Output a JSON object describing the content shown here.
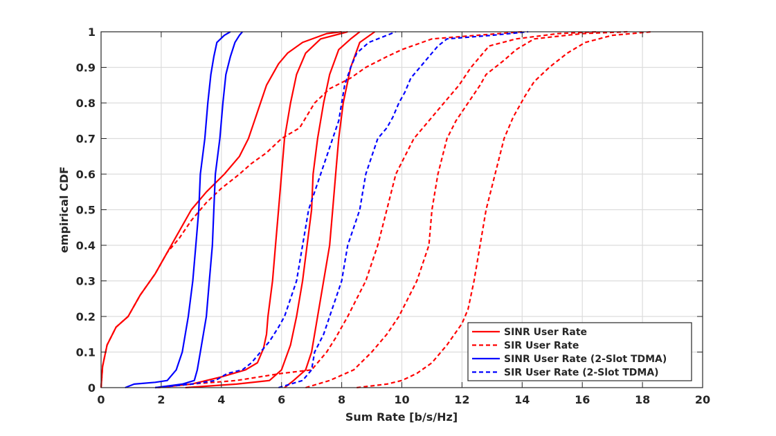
{
  "chart_data": {
    "type": "line",
    "title": "",
    "xlabel": "Sum Rate [b/s/Hz]",
    "ylabel": "empirical CDF",
    "xlim": [
      0,
      20
    ],
    "ylim": [
      0,
      1
    ],
    "x_ticks": [
      "0",
      "2",
      "4",
      "6",
      "8",
      "10",
      "12",
      "14",
      "16",
      "18",
      "20"
    ],
    "y_ticks": [
      "0",
      "0.1",
      "0.2",
      "0.3",
      "0.4",
      "0.5",
      "0.6",
      "0.7",
      "0.8",
      "0.9",
      "1"
    ],
    "grid": true,
    "legend_position": "bottom-right",
    "legend": [
      {
        "label": "SINR User Rate",
        "color": "#ff0000",
        "style": "solid"
      },
      {
        "label": "SIR User Rate",
        "color": "#ff0000",
        "style": "dashed"
      },
      {
        "label": "SINR User Rate (2-Slot TDMA)",
        "color": "#0000ff",
        "style": "solid"
      },
      {
        "label": "SIR User Rate (2-Slot TDMA)",
        "color": "#0000ff",
        "style": "dashed"
      }
    ],
    "series": [
      {
        "legend": 0,
        "points": [
          [
            0,
            0
          ],
          [
            0.05,
            0.06
          ],
          [
            0.2,
            0.12
          ],
          [
            0.5,
            0.17
          ],
          [
            0.9,
            0.2
          ],
          [
            1.3,
            0.26
          ],
          [
            1.8,
            0.32
          ],
          [
            2.2,
            0.38
          ],
          [
            2.6,
            0.44
          ],
          [
            3.0,
            0.5
          ],
          [
            3.5,
            0.55
          ],
          [
            4.1,
            0.6
          ],
          [
            4.6,
            0.65
          ],
          [
            4.9,
            0.7
          ],
          [
            5.1,
            0.75
          ],
          [
            5.3,
            0.8
          ],
          [
            5.5,
            0.85
          ],
          [
            5.7,
            0.88
          ],
          [
            5.9,
            0.91
          ],
          [
            6.2,
            0.94
          ],
          [
            6.7,
            0.97
          ],
          [
            7.5,
            0.995
          ],
          [
            8.0,
            1
          ]
        ]
      },
      {
        "legend": 0,
        "points": [
          [
            1.9,
            0
          ],
          [
            3.0,
            0.01
          ],
          [
            4.0,
            0.03
          ],
          [
            4.8,
            0.05
          ],
          [
            5.2,
            0.07
          ],
          [
            5.4,
            0.11
          ],
          [
            5.5,
            0.15
          ],
          [
            5.55,
            0.2
          ],
          [
            5.7,
            0.3
          ],
          [
            5.8,
            0.4
          ],
          [
            5.9,
            0.5
          ],
          [
            6.0,
            0.6
          ],
          [
            6.1,
            0.7
          ],
          [
            6.3,
            0.8
          ],
          [
            6.5,
            0.88
          ],
          [
            6.8,
            0.94
          ],
          [
            7.3,
            0.98
          ],
          [
            8.2,
            1
          ]
        ]
      },
      {
        "legend": 0,
        "points": [
          [
            2.8,
            0
          ],
          [
            4.5,
            0.01
          ],
          [
            5.6,
            0.02
          ],
          [
            6.0,
            0.05
          ],
          [
            6.3,
            0.12
          ],
          [
            6.5,
            0.2
          ],
          [
            6.7,
            0.3
          ],
          [
            6.85,
            0.4
          ],
          [
            7.0,
            0.5
          ],
          [
            7.05,
            0.6
          ],
          [
            7.2,
            0.7
          ],
          [
            7.4,
            0.8
          ],
          [
            7.6,
            0.88
          ],
          [
            7.9,
            0.95
          ],
          [
            8.3,
            0.98
          ],
          [
            8.6,
            1
          ]
        ]
      },
      {
        "legend": 0,
        "points": [
          [
            6.1,
            0
          ],
          [
            6.4,
            0.02
          ],
          [
            6.8,
            0.05
          ],
          [
            7.0,
            0.1
          ],
          [
            7.2,
            0.2
          ],
          [
            7.4,
            0.3
          ],
          [
            7.6,
            0.4
          ],
          [
            7.7,
            0.5
          ],
          [
            7.8,
            0.6
          ],
          [
            7.9,
            0.7
          ],
          [
            8.05,
            0.8
          ],
          [
            8.3,
            0.9
          ],
          [
            8.6,
            0.97
          ],
          [
            9.1,
            1
          ]
        ]
      },
      {
        "legend": 1,
        "points": [
          [
            0,
            0
          ],
          [
            0.05,
            0.06
          ],
          [
            0.2,
            0.12
          ],
          [
            0.5,
            0.17
          ],
          [
            0.9,
            0.2
          ],
          [
            1.3,
            0.26
          ],
          [
            1.8,
            0.32
          ],
          [
            2.2,
            0.38
          ],
          [
            2.6,
            0.42
          ],
          [
            3.0,
            0.47
          ],
          [
            3.5,
            0.52
          ],
          [
            4.0,
            0.56
          ],
          [
            4.6,
            0.6
          ],
          [
            5.0,
            0.63
          ],
          [
            5.5,
            0.66
          ],
          [
            6.0,
            0.7
          ],
          [
            6.6,
            0.73
          ],
          [
            7.1,
            0.8
          ],
          [
            7.6,
            0.84
          ],
          [
            8.3,
            0.87
          ],
          [
            8.8,
            0.9
          ],
          [
            9.5,
            0.93
          ],
          [
            10.0,
            0.95
          ],
          [
            11.0,
            0.98
          ],
          [
            12.5,
            0.99
          ],
          [
            14.0,
            1
          ]
        ]
      },
      {
        "legend": 1,
        "points": [
          [
            1.8,
            0
          ],
          [
            3.0,
            0.01
          ],
          [
            4.5,
            0.02
          ],
          [
            6.0,
            0.04
          ],
          [
            7.0,
            0.05
          ],
          [
            7.5,
            0.1
          ],
          [
            7.8,
            0.14
          ],
          [
            8.2,
            0.2
          ],
          [
            8.5,
            0.25
          ],
          [
            8.8,
            0.3
          ],
          [
            9.2,
            0.4
          ],
          [
            9.5,
            0.5
          ],
          [
            9.8,
            0.6
          ],
          [
            10.1,
            0.65
          ],
          [
            10.4,
            0.7
          ],
          [
            10.9,
            0.75
          ],
          [
            11.4,
            0.8
          ],
          [
            11.9,
            0.85
          ],
          [
            12.3,
            0.9
          ],
          [
            12.6,
            0.93
          ],
          [
            12.9,
            0.96
          ],
          [
            13.8,
            0.98
          ],
          [
            15.2,
            0.995
          ],
          [
            16.5,
            1
          ]
        ]
      },
      {
        "legend": 1,
        "points": [
          [
            6.8,
            0
          ],
          [
            7.6,
            0.02
          ],
          [
            8.4,
            0.05
          ],
          [
            9.0,
            0.1
          ],
          [
            9.5,
            0.15
          ],
          [
            9.9,
            0.2
          ],
          [
            10.2,
            0.25
          ],
          [
            10.5,
            0.3
          ],
          [
            10.7,
            0.35
          ],
          [
            10.9,
            0.4
          ],
          [
            11.0,
            0.5
          ],
          [
            11.2,
            0.6
          ],
          [
            11.5,
            0.7
          ],
          [
            11.8,
            0.75
          ],
          [
            12.2,
            0.8
          ],
          [
            12.6,
            0.85
          ],
          [
            12.8,
            0.88
          ],
          [
            13.4,
            0.92
          ],
          [
            13.8,
            0.95
          ],
          [
            14.4,
            0.98
          ],
          [
            16.0,
            0.995
          ],
          [
            17.5,
            1
          ]
        ]
      },
      {
        "legend": 1,
        "points": [
          [
            8.5,
            0
          ],
          [
            9.5,
            0.01
          ],
          [
            10.0,
            0.02
          ],
          [
            10.5,
            0.04
          ],
          [
            11.0,
            0.07
          ],
          [
            11.5,
            0.12
          ],
          [
            12.0,
            0.18
          ],
          [
            12.2,
            0.22
          ],
          [
            12.4,
            0.3
          ],
          [
            12.6,
            0.4
          ],
          [
            12.8,
            0.5
          ],
          [
            13.1,
            0.6
          ],
          [
            13.4,
            0.7
          ],
          [
            13.7,
            0.76
          ],
          [
            14.1,
            0.82
          ],
          [
            14.4,
            0.86
          ],
          [
            14.9,
            0.9
          ],
          [
            15.5,
            0.94
          ],
          [
            16.1,
            0.97
          ],
          [
            17.0,
            0.99
          ],
          [
            18.3,
            1
          ]
        ]
      },
      {
        "legend": 2,
        "points": [
          [
            0.8,
            0
          ],
          [
            1.1,
            0.01
          ],
          [
            1.8,
            0.015
          ],
          [
            2.2,
            0.02
          ],
          [
            2.5,
            0.05
          ],
          [
            2.7,
            0.1
          ],
          [
            2.9,
            0.2
          ],
          [
            3.05,
            0.3
          ],
          [
            3.15,
            0.4
          ],
          [
            3.25,
            0.5
          ],
          [
            3.3,
            0.6
          ],
          [
            3.45,
            0.7
          ],
          [
            3.55,
            0.8
          ],
          [
            3.65,
            0.88
          ],
          [
            3.75,
            0.93
          ],
          [
            3.85,
            0.97
          ],
          [
            4.1,
            0.99
          ],
          [
            4.3,
            1
          ]
        ]
      },
      {
        "legend": 2,
        "points": [
          [
            1.8,
            0
          ],
          [
            2.7,
            0.01
          ],
          [
            3.1,
            0.02
          ],
          [
            3.2,
            0.05
          ],
          [
            3.3,
            0.1
          ],
          [
            3.5,
            0.2
          ],
          [
            3.6,
            0.3
          ],
          [
            3.7,
            0.4
          ],
          [
            3.75,
            0.5
          ],
          [
            3.8,
            0.6
          ],
          [
            3.95,
            0.7
          ],
          [
            4.05,
            0.8
          ],
          [
            4.15,
            0.88
          ],
          [
            4.3,
            0.93
          ],
          [
            4.45,
            0.97
          ],
          [
            4.6,
            0.99
          ],
          [
            4.7,
            1
          ]
        ]
      },
      {
        "legend": 3,
        "points": [
          [
            1.8,
            0
          ],
          [
            3.0,
            0.01
          ],
          [
            3.8,
            0.02
          ],
          [
            4.2,
            0.04
          ],
          [
            4.7,
            0.05
          ],
          [
            5.0,
            0.07
          ],
          [
            5.3,
            0.1
          ],
          [
            5.6,
            0.13
          ],
          [
            5.9,
            0.17
          ],
          [
            6.1,
            0.2
          ],
          [
            6.3,
            0.25
          ],
          [
            6.5,
            0.3
          ],
          [
            6.7,
            0.4
          ],
          [
            6.8,
            0.45
          ],
          [
            6.9,
            0.5
          ],
          [
            7.1,
            0.55
          ],
          [
            7.3,
            0.6
          ],
          [
            7.5,
            0.65
          ],
          [
            7.7,
            0.7
          ],
          [
            7.9,
            0.75
          ],
          [
            8.0,
            0.8
          ],
          [
            8.1,
            0.85
          ],
          [
            8.3,
            0.9
          ],
          [
            8.5,
            0.94
          ],
          [
            8.9,
            0.97
          ],
          [
            9.8,
            1
          ]
        ]
      },
      {
        "legend": 3,
        "points": [
          [
            5.9,
            0
          ],
          [
            6.7,
            0.02
          ],
          [
            7.0,
            0.05
          ],
          [
            7.1,
            0.1
          ],
          [
            7.4,
            0.15
          ],
          [
            7.6,
            0.2
          ],
          [
            7.8,
            0.25
          ],
          [
            8.0,
            0.3
          ],
          [
            8.1,
            0.35
          ],
          [
            8.2,
            0.4
          ],
          [
            8.4,
            0.45
          ],
          [
            8.6,
            0.5
          ],
          [
            8.7,
            0.55
          ],
          [
            8.8,
            0.6
          ],
          [
            9.0,
            0.65
          ],
          [
            9.2,
            0.7
          ],
          [
            9.5,
            0.73
          ],
          [
            9.7,
            0.76
          ],
          [
            9.9,
            0.8
          ],
          [
            10.1,
            0.83
          ],
          [
            10.3,
            0.87
          ],
          [
            10.6,
            0.9
          ],
          [
            10.9,
            0.93
          ],
          [
            11.2,
            0.96
          ],
          [
            11.5,
            0.98
          ],
          [
            13.0,
            0.99
          ],
          [
            14.2,
            1
          ]
        ]
      }
    ]
  }
}
